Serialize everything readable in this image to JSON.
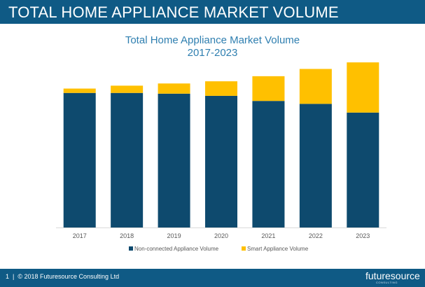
{
  "header": {
    "title": "TOTAL HOME APPLIANCE MARKET VOLUME"
  },
  "footer": {
    "page_number": "1",
    "copyright": "© 2018 Futuresource Consulting Ltd"
  },
  "logo": {
    "text": "futuresource",
    "subtext": "CONSULTING"
  },
  "colors": {
    "header_bg": "#0f5a85",
    "title": "#2f7fb0",
    "non_connected": "#0e4a6e",
    "smart": "#ffc000"
  },
  "chart_data": {
    "type": "bar",
    "stacked": true,
    "title": "Total Home Appliance Market Volume",
    "subtitle": "2017-2023",
    "categories": [
      "2017",
      "2018",
      "2019",
      "2020",
      "2021",
      "2022",
      "2023"
    ],
    "series": [
      {
        "name": "Non-connected Appliance Volume",
        "color": "#0e4a6e",
        "values": [
          92.5,
          92.5,
          92.0,
          90.5,
          87.0,
          85.0,
          79.0
        ]
      },
      {
        "name": "Smart Appliance Volume",
        "color": "#ffc000",
        "values": [
          3.0,
          5.0,
          7.0,
          10.0,
          17.0,
          24.0,
          34.5
        ]
      }
    ],
    "ylim": [
      0,
      115
    ],
    "grid": false,
    "y_axis_visible": false,
    "legend_position": "bottom"
  }
}
